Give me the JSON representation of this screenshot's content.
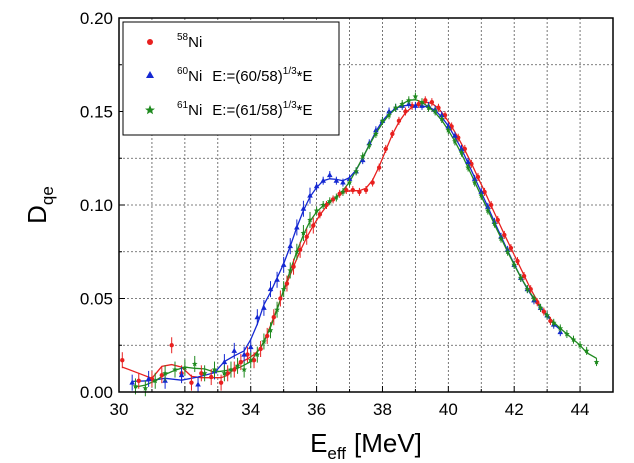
{
  "chart_data": {
    "type": "scatter",
    "xlabel_main": "E",
    "xlabel_sub": "eff",
    "xlabel_unit": "[MeV]",
    "ylabel_main": "D",
    "ylabel_sub": "qe",
    "xlim": [
      30,
      45
    ],
    "ylim": [
      0,
      0.2
    ],
    "xticks": [
      30,
      32,
      34,
      36,
      38,
      40,
      42,
      44
    ],
    "xtick_labels": [
      "30",
      "32",
      "34",
      "36",
      "38",
      "40",
      "42",
      "44"
    ],
    "yticks": [
      0,
      0.05,
      0.1,
      0.15,
      0.2
    ],
    "ytick_labels": [
      "0.00",
      "0.05",
      "0.10",
      "0.15",
      "0.20"
    ],
    "grid": true,
    "legend_position": "top-left",
    "series": [
      {
        "legend_sup": "58",
        "legend_main": "Ni",
        "legend_note_pre": "",
        "legend_note_sup": "",
        "legend_note_post": "",
        "color": "#e8201f",
        "marker": "circle",
        "points": [
          [
            30.1,
            0.017
          ],
          [
            30.6,
            0.006
          ],
          [
            31.0,
            0.007
          ],
          [
            31.3,
            0.009
          ],
          [
            31.6,
            0.025
          ],
          [
            31.9,
            0.01
          ],
          [
            32.2,
            0.005
          ],
          [
            32.5,
            0.01
          ],
          [
            32.8,
            0.008
          ],
          [
            33.1,
            0.005
          ],
          [
            33.3,
            0.01
          ],
          [
            33.5,
            0.012
          ],
          [
            33.7,
            0.016
          ],
          [
            33.9,
            0.02
          ],
          [
            34.1,
            0.017
          ],
          [
            34.3,
            0.023
          ],
          [
            34.5,
            0.03
          ],
          [
            34.7,
            0.04
          ],
          [
            34.9,
            0.05
          ],
          [
            35.1,
            0.058
          ],
          [
            35.3,
            0.067
          ],
          [
            35.5,
            0.076
          ],
          [
            35.7,
            0.083
          ],
          [
            35.9,
            0.089
          ],
          [
            36.1,
            0.095
          ],
          [
            36.3,
            0.1
          ],
          [
            36.5,
            0.103
          ],
          [
            36.7,
            0.106
          ],
          [
            36.9,
            0.108
          ],
          [
            37.1,
            0.108
          ],
          [
            37.3,
            0.107
          ],
          [
            37.5,
            0.108
          ],
          [
            37.7,
            0.112
          ],
          [
            37.9,
            0.12
          ],
          [
            38.1,
            0.13
          ],
          [
            38.3,
            0.138
          ],
          [
            38.5,
            0.145
          ],
          [
            38.7,
            0.15
          ],
          [
            38.9,
            0.153
          ],
          [
            39.1,
            0.154
          ],
          [
            39.3,
            0.156
          ],
          [
            39.5,
            0.155
          ],
          [
            39.7,
            0.152
          ],
          [
            39.9,
            0.148
          ],
          [
            40.1,
            0.142
          ],
          [
            40.3,
            0.136
          ],
          [
            40.5,
            0.13
          ],
          [
            40.7,
            0.122
          ],
          [
            40.9,
            0.115
          ],
          [
            41.1,
            0.107
          ],
          [
            41.3,
            0.1
          ],
          [
            41.5,
            0.092
          ],
          [
            41.7,
            0.084
          ],
          [
            41.9,
            0.077
          ],
          [
            42.1,
            0.07
          ],
          [
            42.3,
            0.062
          ],
          [
            42.5,
            0.055
          ],
          [
            42.7,
            0.048
          ],
          [
            42.9,
            0.043
          ],
          [
            43.1,
            0.038
          ]
        ]
      },
      {
        "legend_sup": "60",
        "legend_main": "Ni",
        "legend_note_pre": "E:=(60/58)",
        "legend_note_sup": "1/3",
        "legend_note_post": "*E",
        "color": "#1428d2",
        "marker": "triangle",
        "points": [
          [
            30.4,
            0.005
          ],
          [
            30.9,
            0.007
          ],
          [
            31.4,
            0.006
          ],
          [
            31.9,
            0.009
          ],
          [
            32.4,
            0.004
          ],
          [
            32.9,
            0.011
          ],
          [
            33.2,
            0.016
          ],
          [
            33.5,
            0.022
          ],
          [
            33.8,
            0.02
          ],
          [
            34.0,
            0.024
          ],
          [
            34.2,
            0.04
          ],
          [
            34.4,
            0.045
          ],
          [
            34.6,
            0.055
          ],
          [
            34.8,
            0.06
          ],
          [
            35.0,
            0.068
          ],
          [
            35.2,
            0.078
          ],
          [
            35.4,
            0.088
          ],
          [
            35.6,
            0.098
          ],
          [
            35.8,
            0.105
          ],
          [
            36.0,
            0.11
          ],
          [
            36.2,
            0.113
          ],
          [
            36.4,
            0.116
          ],
          [
            36.6,
            0.113
          ],
          [
            36.8,
            0.112
          ],
          [
            37.0,
            0.114
          ],
          [
            37.2,
            0.118
          ],
          [
            37.4,
            0.124
          ],
          [
            37.6,
            0.133
          ],
          [
            37.8,
            0.14
          ],
          [
            38.0,
            0.145
          ],
          [
            38.2,
            0.15
          ],
          [
            38.4,
            0.152
          ],
          [
            38.6,
            0.153
          ],
          [
            38.8,
            0.154
          ],
          [
            39.0,
            0.153
          ],
          [
            39.2,
            0.153
          ],
          [
            39.4,
            0.153
          ],
          [
            39.6,
            0.151
          ],
          [
            39.8,
            0.148
          ],
          [
            40.0,
            0.142
          ],
          [
            40.2,
            0.137
          ],
          [
            40.4,
            0.13
          ],
          [
            40.6,
            0.123
          ],
          [
            40.8,
            0.114
          ],
          [
            41.0,
            0.107
          ],
          [
            41.2,
            0.099
          ],
          [
            41.4,
            0.091
          ],
          [
            41.6,
            0.083
          ],
          [
            41.8,
            0.076
          ],
          [
            42.0,
            0.068
          ],
          [
            42.2,
            0.061
          ],
          [
            42.4,
            0.055
          ],
          [
            42.6,
            0.049
          ],
          [
            42.8,
            0.045
          ],
          [
            43.0,
            0.041
          ],
          [
            43.2,
            0.036
          ],
          [
            43.4,
            0.032
          ]
        ]
      },
      {
        "legend_sup": "61",
        "legend_main": "Ni",
        "legend_note_pre": "E:=(61/58)",
        "legend_note_sup": "1/3",
        "legend_note_post": "*E",
        "color": "#1f8a1f",
        "marker": "star",
        "points": [
          [
            30.5,
            0.003
          ],
          [
            30.8,
            0.002
          ],
          [
            31.1,
            0.006
          ],
          [
            31.4,
            0.01
          ],
          [
            31.7,
            0.012
          ],
          [
            32.0,
            0.013
          ],
          [
            32.3,
            0.015
          ],
          [
            32.6,
            0.01
          ],
          [
            32.9,
            0.012
          ],
          [
            33.2,
            0.01
          ],
          [
            33.4,
            0.012
          ],
          [
            33.6,
            0.014
          ],
          [
            33.8,
            0.012
          ],
          [
            34.0,
            0.017
          ],
          [
            34.2,
            0.02
          ],
          [
            34.4,
            0.027
          ],
          [
            34.6,
            0.033
          ],
          [
            34.8,
            0.044
          ],
          [
            35.0,
            0.055
          ],
          [
            35.2,
            0.065
          ],
          [
            35.4,
            0.075
          ],
          [
            35.6,
            0.085
          ],
          [
            35.8,
            0.092
          ],
          [
            36.0,
            0.097
          ],
          [
            36.2,
            0.1
          ],
          [
            36.4,
            0.102
          ],
          [
            36.6,
            0.104
          ],
          [
            36.8,
            0.107
          ],
          [
            37.0,
            0.112
          ],
          [
            37.2,
            0.118
          ],
          [
            37.4,
            0.126
          ],
          [
            37.6,
            0.132
          ],
          [
            37.8,
            0.138
          ],
          [
            38.0,
            0.145
          ],
          [
            38.2,
            0.148
          ],
          [
            38.4,
            0.152
          ],
          [
            38.6,
            0.154
          ],
          [
            38.8,
            0.156
          ],
          [
            39.0,
            0.158
          ],
          [
            39.2,
            0.155
          ],
          [
            39.4,
            0.152
          ],
          [
            39.6,
            0.15
          ],
          [
            39.8,
            0.146
          ],
          [
            40.0,
            0.14
          ],
          [
            40.2,
            0.134
          ],
          [
            40.4,
            0.128
          ],
          [
            40.6,
            0.12
          ],
          [
            40.8,
            0.112
          ],
          [
            41.0,
            0.105
          ],
          [
            41.2,
            0.097
          ],
          [
            41.4,
            0.09
          ],
          [
            41.6,
            0.082
          ],
          [
            41.8,
            0.075
          ],
          [
            42.0,
            0.068
          ],
          [
            42.2,
            0.061
          ],
          [
            42.4,
            0.055
          ],
          [
            42.6,
            0.05
          ],
          [
            42.8,
            0.045
          ],
          [
            43.0,
            0.041
          ],
          [
            43.2,
            0.037
          ],
          [
            43.4,
            0.034
          ],
          [
            43.6,
            0.031
          ],
          [
            43.8,
            0.028
          ],
          [
            44.0,
            0.025
          ],
          [
            44.2,
            0.022
          ],
          [
            44.5,
            0.016
          ]
        ]
      }
    ]
  }
}
